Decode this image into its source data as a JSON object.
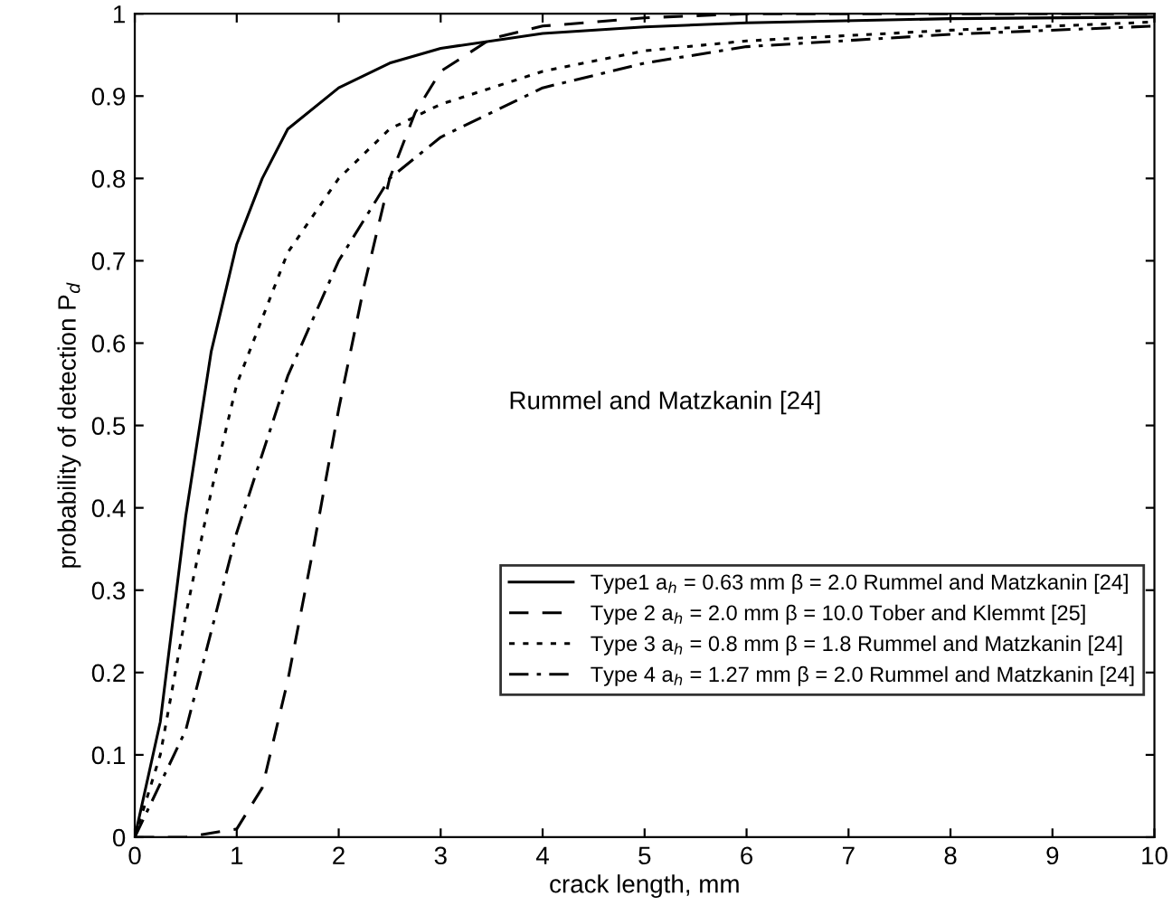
{
  "chart_data": {
    "type": "line",
    "xlabel": "crack length, mm",
    "ylabel": "probability of detection P$_{d}$",
    "annotations": [
      "Rummel and Matzkanin [24]"
    ],
    "series": [
      {
        "name": "Type1 a$_{h}$ = 0.63 mm β = 2.0 Rummel and Matzkanin [24]",
        "color": "#000000",
        "line_style": "solid",
        "x": [
          0,
          0.25,
          0.5,
          0.75,
          1,
          1.25,
          1.5,
          2,
          2.5,
          3,
          4,
          5,
          6,
          8,
          10
        ],
        "values": [
          0,
          0.14,
          0.39,
          0.59,
          0.72,
          0.8,
          0.86,
          0.91,
          0.94,
          0.958,
          0.976,
          0.984,
          0.989,
          0.994,
          0.996
        ]
      },
      {
        "name": "Type 2 a$_{h}$ = 2.0 mm β = 10.0 Tober and Klemmt [25]",
        "color": "#000000",
        "line_style": "dashed",
        "x": [
          0,
          0.5,
          1,
          1.25,
          1.5,
          1.75,
          2,
          2.25,
          2.5,
          2.75,
          3,
          3.5,
          4,
          5,
          6,
          8,
          10
        ],
        "values": [
          0,
          0,
          0.01,
          0.06,
          0.19,
          0.35,
          0.52,
          0.67,
          0.8,
          0.88,
          0.93,
          0.97,
          0.985,
          0.995,
          1,
          1,
          1
        ]
      },
      {
        "name": "Type 3 a$_{h}$ = 0.8 mm β = 1.8 Rummel and Matzkanin [24]",
        "color": "#000000",
        "line_style": "dotted",
        "x": [
          0,
          0.25,
          0.5,
          0.75,
          1,
          1.5,
          2,
          2.5,
          3,
          4,
          5,
          6,
          8,
          10
        ],
        "values": [
          0,
          0.1,
          0.27,
          0.42,
          0.55,
          0.71,
          0.8,
          0.86,
          0.89,
          0.93,
          0.955,
          0.967,
          0.98,
          0.99
        ]
      },
      {
        "name": "Type 4 a$_{h}$ = 1.27 mm β = 2.0 Rummel and Matzkanin [24]",
        "color": "#000000",
        "line_style": "dashdot",
        "x": [
          0,
          0.5,
          1,
          1.5,
          2,
          2.5,
          3,
          4,
          5,
          6,
          8,
          10
        ],
        "values": [
          0,
          0.13,
          0.37,
          0.56,
          0.7,
          0.8,
          0.85,
          0.91,
          0.94,
          0.96,
          0.975,
          0.985
        ]
      }
    ],
    "xlim": [
      0,
      10
    ],
    "ylim": [
      0,
      1
    ],
    "xticks": [
      0,
      1,
      2,
      3,
      4,
      5,
      6,
      7,
      8,
      9,
      10
    ],
    "yticks": [
      0,
      0.1,
      0.2,
      0.3,
      0.4,
      0.5,
      0.6,
      0.7,
      0.8,
      0.9,
      1
    ],
    "legend": "bottom right",
    "grid": false
  }
}
